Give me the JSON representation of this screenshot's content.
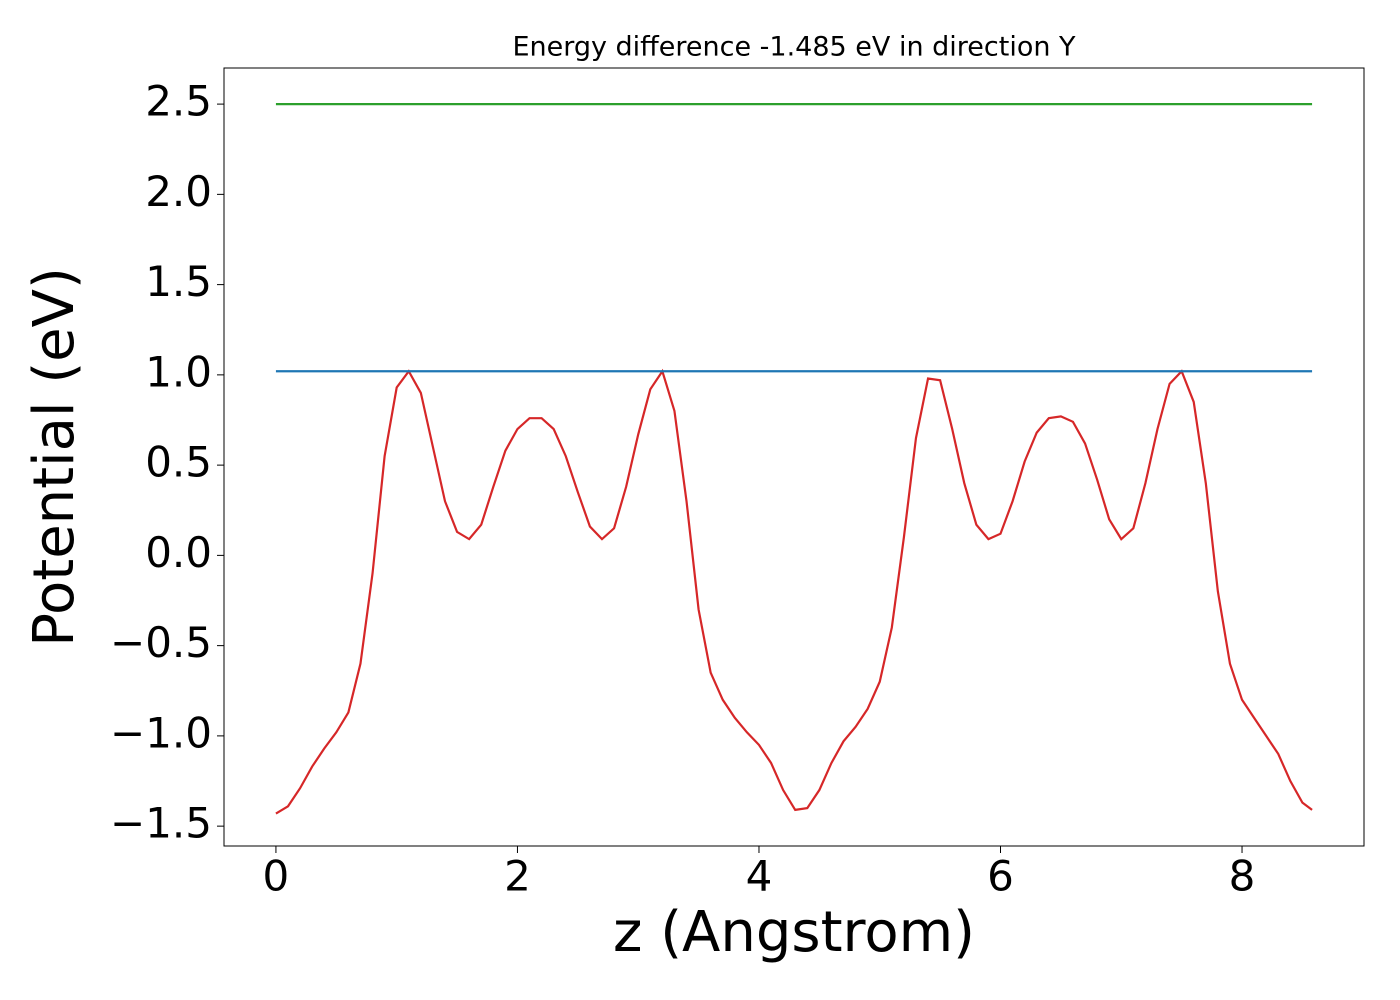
{
  "chart_data": {
    "type": "line",
    "title": "Energy difference -1.485 eV in direction Y",
    "xlabel": "z (Angstrom)",
    "ylabel": "Potential (eV)",
    "xlim": [
      -0.43,
      9.01
    ],
    "ylim": [
      -1.61,
      2.7
    ],
    "xticks": [
      0,
      2,
      4,
      6,
      8
    ],
    "yticks": [
      {
        "value": -1.5,
        "label": "−1.5"
      },
      {
        "value": -1.0,
        "label": "−1.0"
      },
      {
        "value": -0.5,
        "label": "−0.5"
      },
      {
        "value": 0.0,
        "label": "0.0"
      },
      0.5,
      {
        "value": 1.0,
        "label": "1.0"
      },
      1.5,
      {
        "value": 2.0,
        "label": "2.0"
      },
      2.5
    ],
    "series": [
      {
        "color": "#d62728",
        "x": [
          0,
          0.1,
          0.2,
          0.3,
          0.4,
          0.5,
          0.6,
          0.7,
          0.8,
          0.9,
          1.0,
          1.1,
          1.2,
          1.3,
          1.4,
          1.5,
          1.6,
          1.7,
          1.8,
          1.9,
          2.0,
          2.1,
          2.2,
          2.3,
          2.4,
          2.5,
          2.6,
          2.7,
          2.8,
          2.9,
          3.0,
          3.1,
          3.2,
          3.3,
          3.4,
          3.5,
          3.6,
          3.7,
          3.8,
          3.9,
          4.0,
          4.1,
          4.2,
          4.3,
          4.4,
          4.5,
          4.6,
          4.7,
          4.8,
          4.9,
          5.0,
          5.1,
          5.2,
          5.3,
          5.4,
          5.5,
          5.6,
          5.7,
          5.8,
          5.9,
          6.0,
          6.1,
          6.2,
          6.3,
          6.4,
          6.5,
          6.6,
          6.7,
          6.8,
          6.9,
          7.0,
          7.1,
          7.2,
          7.3,
          7.4,
          7.5,
          7.6,
          7.7,
          7.8,
          7.9,
          8.0,
          8.1,
          8.2,
          8.3,
          8.4,
          8.5,
          8.58
        ],
        "values": [
          -1.43,
          -1.39,
          -1.29,
          -1.17,
          -1.07,
          -0.98,
          -0.87,
          -0.6,
          -0.1,
          0.55,
          0.93,
          1.02,
          0.9,
          0.6,
          0.3,
          0.13,
          0.09,
          0.17,
          0.38,
          0.58,
          0.7,
          0.76,
          0.76,
          0.7,
          0.55,
          0.35,
          0.16,
          0.09,
          0.15,
          0.38,
          0.67,
          0.92,
          1.02,
          0.8,
          0.3,
          -0.3,
          -0.65,
          -0.8,
          -0.9,
          -0.98,
          -1.05,
          -1.15,
          -1.3,
          -1.41,
          -1.4,
          -1.3,
          -1.15,
          -1.03,
          -0.95,
          -0.85,
          -0.7,
          -0.4,
          0.1,
          0.65,
          0.98,
          0.97,
          0.7,
          0.4,
          0.17,
          0.09,
          0.12,
          0.3,
          0.52,
          0.68,
          0.76,
          0.77,
          0.74,
          0.62,
          0.42,
          0.2,
          0.09,
          0.15,
          0.4,
          0.7,
          0.95,
          1.02,
          0.85,
          0.4,
          -0.2,
          -0.6,
          -0.8,
          -0.9,
          -1.0,
          -1.1,
          -1.25,
          -1.37,
          -1.41
        ]
      },
      {
        "color": "#1f77b4",
        "x": [
          0,
          8.58
        ],
        "values": [
          1.02,
          1.02
        ]
      },
      {
        "color": "#2ca02c",
        "x": [
          0,
          8.58
        ],
        "values": [
          2.5,
          2.5
        ]
      }
    ]
  }
}
